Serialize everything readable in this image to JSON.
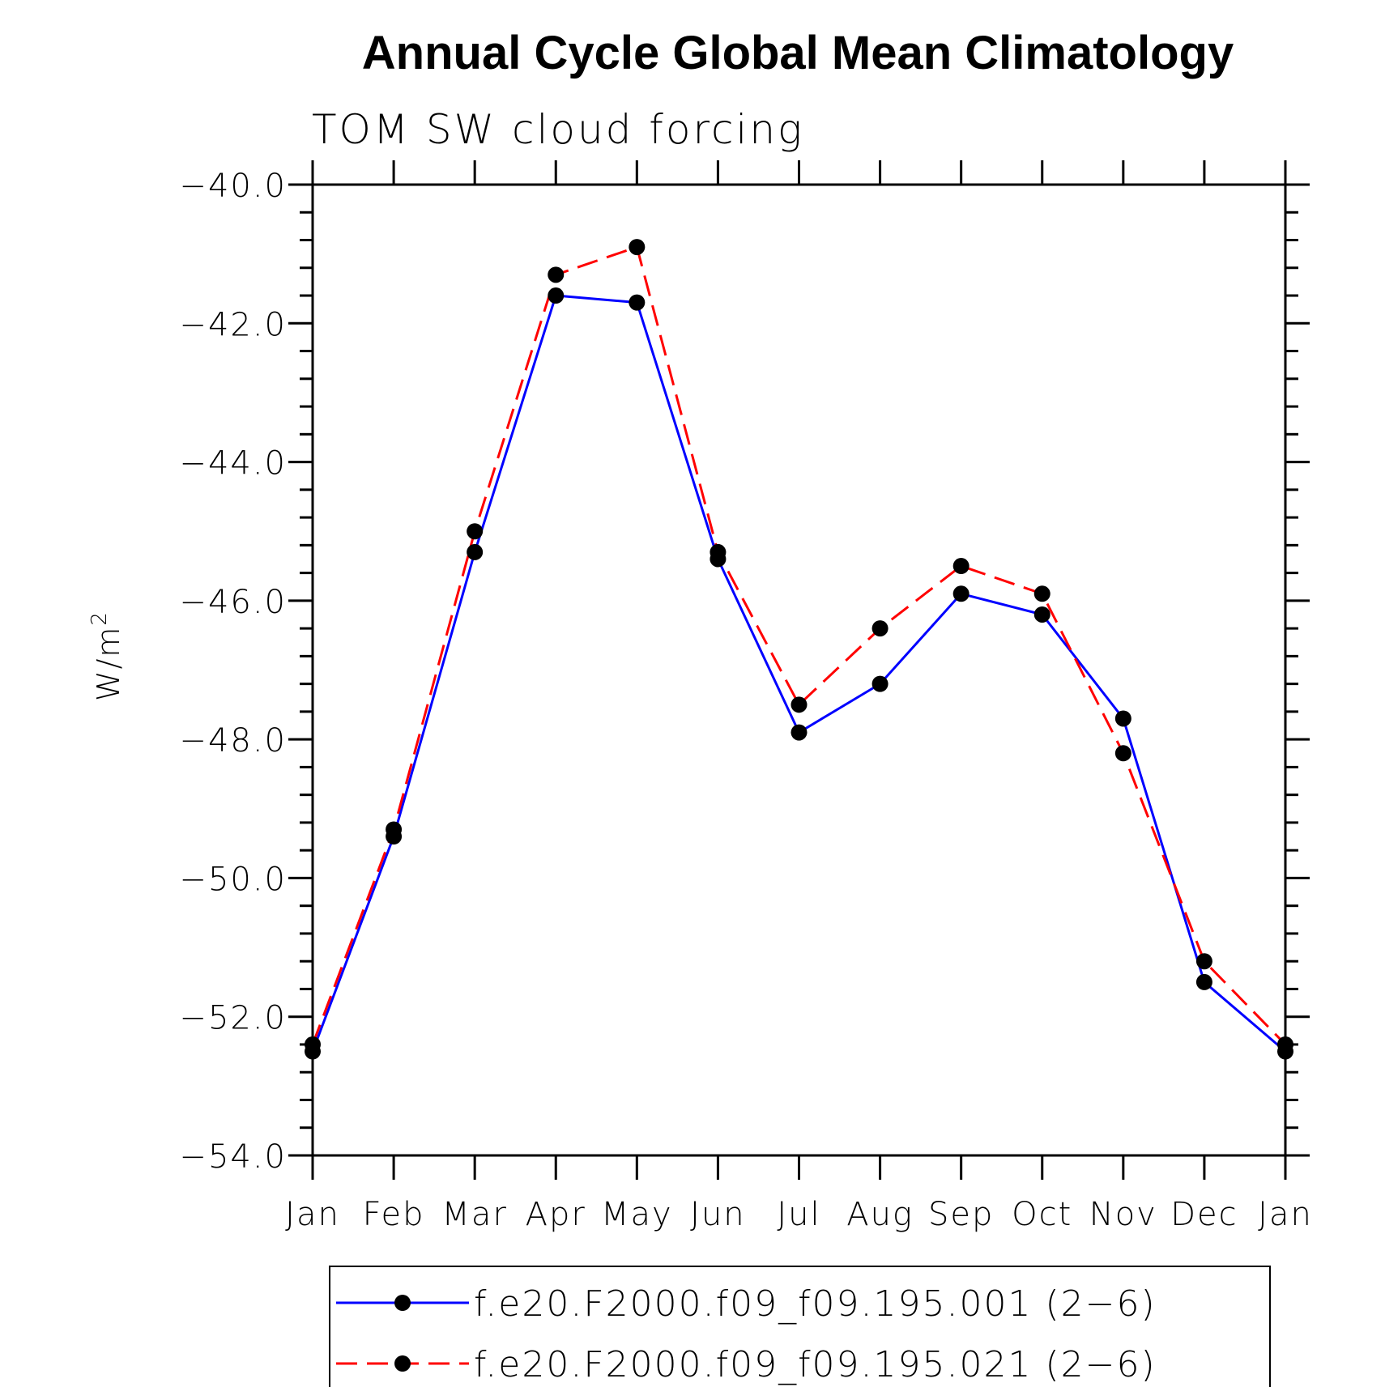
{
  "chart_data": {
    "type": "line",
    "title": "Annual Cycle Global Mean Climatology",
    "subtitle": "TOM SW cloud forcing",
    "ylabel": "W/m",
    "ylabel_superscript": "2",
    "xlabel": "",
    "categories": [
      "Jan",
      "Feb",
      "Mar",
      "Apr",
      "May",
      "Jun",
      "Jul",
      "Aug",
      "Sep",
      "Oct",
      "Nov",
      "Dec",
      "Jan"
    ],
    "ylim": [
      -54.0,
      -40.0
    ],
    "yticks": [
      -54.0,
      -52.0,
      -50.0,
      -48.0,
      -46.0,
      -44.0,
      -42.0,
      -40.0
    ],
    "ytick_labels": [
      "−54.0",
      "−52.0",
      "−50.0",
      "−48.0",
      "−46.0",
      "−44.0",
      "−42.0",
      "−40.0"
    ],
    "series": [
      {
        "name": "f.e20.F2000.f09_f09.195.001 (2−6)",
        "color": "#0000ff",
        "line_style": "solid",
        "marker": "filled-circle",
        "values": [
          -52.5,
          -49.4,
          -45.3,
          -41.6,
          -41.7,
          -45.4,
          -47.9,
          -47.2,
          -45.9,
          -46.2,
          -47.7,
          -51.5,
          -52.5
        ]
      },
      {
        "name": "f.e20.F2000.f09_f09.195.021 (2−6)",
        "color": "#ff0000",
        "line_style": "dashed",
        "marker": "filled-circle",
        "values": [
          -52.4,
          -49.3,
          -45.0,
          -41.3,
          -40.9,
          -45.3,
          -47.5,
          -46.4,
          -45.5,
          -45.9,
          -48.2,
          -51.2,
          -52.4
        ]
      }
    ],
    "legend_position": "bottom",
    "grid": false
  }
}
